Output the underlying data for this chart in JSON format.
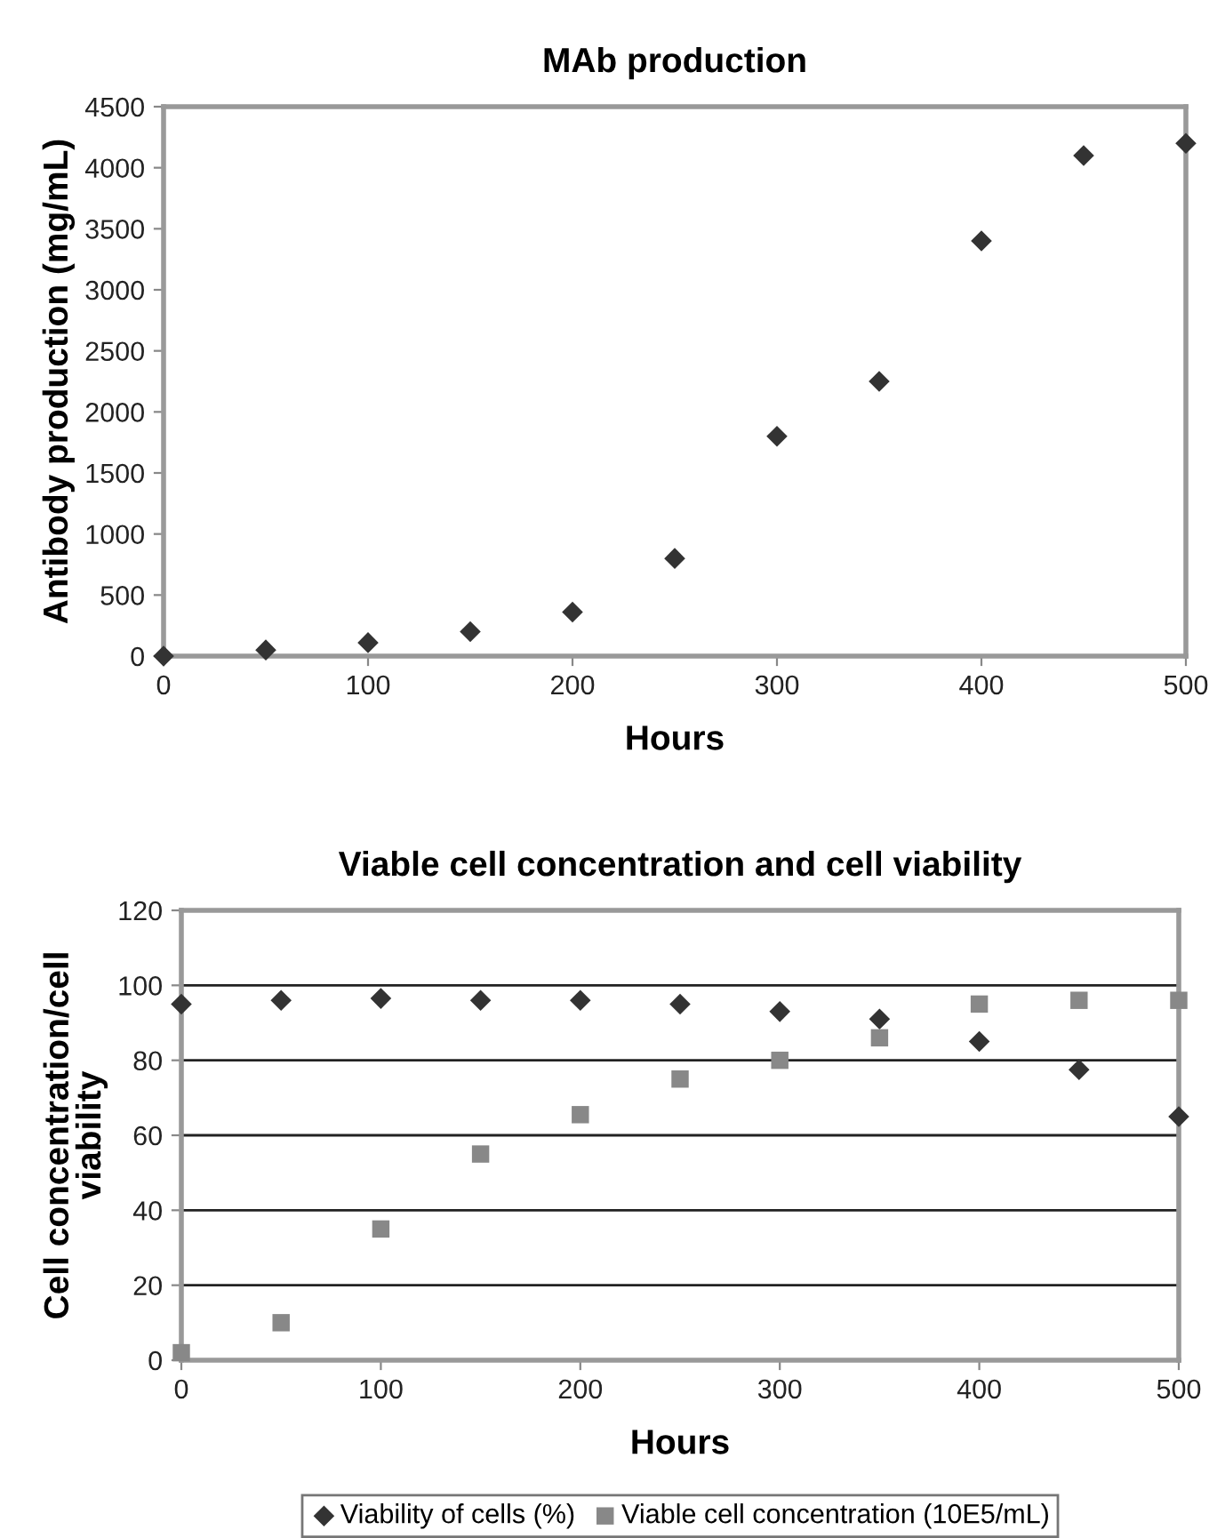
{
  "chart_data": [
    {
      "type": "scatter",
      "title": "MAb production",
      "xlabel": "Hours",
      "ylabel": "Antibody production (mg/mL)",
      "x": [
        0,
        50,
        100,
        150,
        200,
        250,
        300,
        350,
        400,
        450,
        500
      ],
      "marker": "diamond",
      "grid": false,
      "legend": false,
      "series": [
        {
          "color": "#333333",
          "values": [
            0,
            50,
            110,
            200,
            360,
            800,
            1800,
            2250,
            3400,
            4100,
            4200
          ]
        }
      ],
      "xlim": [
        0,
        500
      ],
      "xticks": [
        0,
        100,
        200,
        300,
        400,
        500
      ],
      "ylim": [
        0,
        4500
      ],
      "yticks": [
        0,
        500,
        1000,
        1500,
        2000,
        2500,
        3000,
        3500,
        4000,
        4500
      ]
    },
    {
      "type": "scatter",
      "title": "Viable cell concentration and cell viability",
      "xlabel": "Hours",
      "ylabel": "Cell concentration/cell viability",
      "x": [
        0,
        50,
        100,
        150,
        200,
        250,
        300,
        350,
        400,
        450,
        500
      ],
      "grid": "y",
      "legend": "bottom",
      "series": [
        {
          "name": "Viability of cells (%)",
          "color": "#333333",
          "marker": "diamond",
          "values": [
            95,
            96,
            96.5,
            96,
            96,
            95,
            93,
            91,
            85,
            77.5,
            65
          ]
        },
        {
          "name": "Viable cell concentration (10E5/mL)",
          "color": "#888888",
          "marker": "square",
          "values": [
            2,
            10,
            35,
            55,
            65.5,
            75,
            80,
            86,
            95,
            96,
            96
          ]
        }
      ],
      "xlim": [
        0,
        500
      ],
      "xticks": [
        0,
        100,
        200,
        300,
        400,
        500
      ],
      "ylim": [
        0,
        120
      ],
      "yticks": [
        0,
        20,
        40,
        60,
        80,
        100,
        120
      ]
    }
  ]
}
